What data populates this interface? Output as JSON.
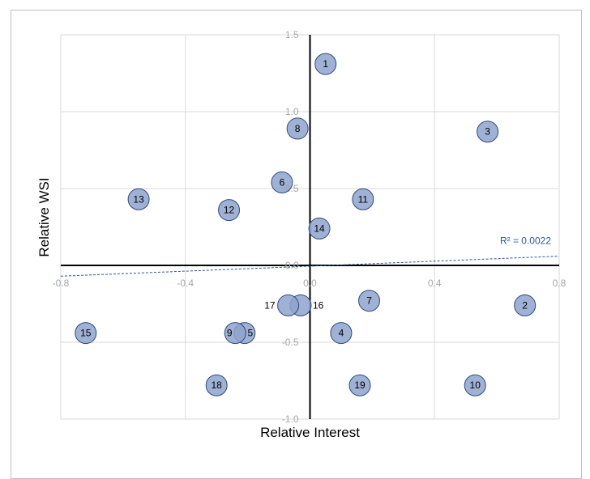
{
  "chart_data": {
    "type": "scatter",
    "title": "",
    "xlabel": "Relative Interest",
    "ylabel": "Relative WSI",
    "xlim": [
      -0.8,
      0.8
    ],
    "ylim": [
      -1.0,
      1.5
    ],
    "x_ticks": [
      "-0.8",
      "-0.4",
      "0.0",
      "0.4",
      "0.8"
    ],
    "y_ticks": [
      "1.5",
      "1.0",
      "0.5",
      "0.0",
      "-0.5",
      "-1.0"
    ],
    "x_tick_values": [
      -0.8,
      -0.4,
      0.0,
      0.4,
      0.8
    ],
    "y_tick_values": [
      1.5,
      1.0,
      0.5,
      0.0,
      -0.5,
      -1.0
    ],
    "grid": true,
    "legend": "none",
    "points": [
      {
        "label": "1",
        "x": 0.05,
        "y": 1.31
      },
      {
        "label": "2",
        "x": 0.69,
        "y": -0.26
      },
      {
        "label": "3",
        "x": 0.57,
        "y": 0.87
      },
      {
        "label": "4",
        "x": 0.1,
        "y": -0.44
      },
      {
        "label": "5",
        "x": -0.21,
        "y": -0.44
      },
      {
        "label": "6",
        "x": -0.09,
        "y": 0.54
      },
      {
        "label": "7",
        "x": 0.19,
        "y": -0.23
      },
      {
        "label": "8",
        "x": -0.04,
        "y": 0.89
      },
      {
        "label": "9",
        "x": -0.24,
        "y": -0.44
      },
      {
        "label": "10",
        "x": 0.53,
        "y": -0.78
      },
      {
        "label": "11",
        "x": 0.17,
        "y": 0.43
      },
      {
        "label": "12",
        "x": -0.26,
        "y": 0.36
      },
      {
        "label": "13",
        "x": -0.55,
        "y": 0.43
      },
      {
        "label": "14",
        "x": 0.03,
        "y": 0.24
      },
      {
        "label": "15",
        "x": -0.72,
        "y": -0.44
      },
      {
        "label": "16",
        "x": -0.03,
        "y": -0.26
      },
      {
        "label": "17",
        "x": -0.07,
        "y": -0.26
      },
      {
        "label": "18",
        "x": -0.3,
        "y": -0.78
      },
      {
        "label": "19",
        "x": 0.16,
        "y": -0.78
      }
    ],
    "label_outside": {
      "16": "right",
      "17": "left",
      "9": "left",
      "5": "right"
    },
    "trendline": {
      "type": "linear",
      "x": [
        -0.8,
        0.8
      ],
      "y": [
        -0.07,
        0.06
      ],
      "r2_label": "R² = 0.0022"
    },
    "colors": {
      "marker_fill": "#8ea3cc",
      "marker_stroke": "#2f4b7c",
      "trendline": "#2f5597",
      "grid": "#d9d9d9",
      "axis": "#000000",
      "tick_text": "#a6a6a6"
    }
  }
}
